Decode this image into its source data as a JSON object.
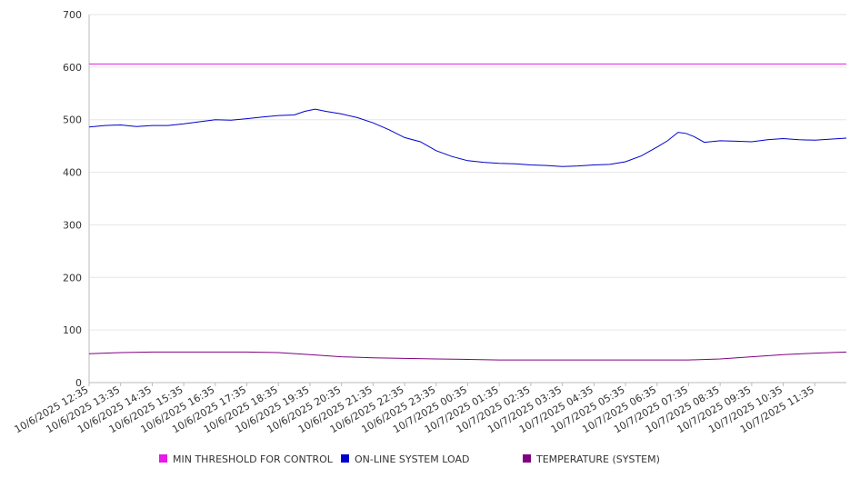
{
  "chart_data": {
    "type": "line",
    "ylim": [
      0,
      700
    ],
    "y_ticks": [
      0,
      100,
      200,
      300,
      400,
      500,
      600,
      700
    ],
    "grid": true,
    "legend_position": "bottom",
    "x_tick_labels": [
      "10/6/2025 12:35",
      "10/6/2025 13:35",
      "10/6/2025 14:35",
      "10/6/2025 15:35",
      "10/6/2025 16:35",
      "10/6/2025 17:35",
      "10/6/2025 18:35",
      "10/6/2025 19:35",
      "10/6/2025 20:35",
      "10/6/2025 21:35",
      "10/6/2025 22:35",
      "10/6/2025 23:35",
      "10/7/2025 00:35",
      "10/7/2025 01:35",
      "10/7/2025 02:35",
      "10/7/2025 03:35",
      "10/7/2025 04:35",
      "10/7/2025 05:35",
      "10/7/2025 06:35",
      "10/7/2025 07:35",
      "10/7/2025 08:35",
      "10/7/2025 09:35",
      "10/7/2025 10:35",
      "10/7/2025 11:35"
    ],
    "x_range": [
      "10/6/2025 12:35",
      "10/7/2025 12:35"
    ],
    "series": [
      {
        "name": "MIN THRESHOLD FOR CONTROL",
        "color": "#e619e6",
        "points": [
          [
            "10/6/2025 12:35",
            606
          ],
          [
            "10/7/2025 12:35",
            606
          ]
        ]
      },
      {
        "name": "ON-LINE SYSTEM LOAD",
        "color": "#0000cc",
        "points": [
          [
            "10/6/2025 12:35",
            486
          ],
          [
            "10/6/2025 13:05",
            489
          ],
          [
            "10/6/2025 13:35",
            490
          ],
          [
            "10/6/2025 14:05",
            487
          ],
          [
            "10/6/2025 14:35",
            489
          ],
          [
            "10/6/2025 15:05",
            489
          ],
          [
            "10/6/2025 15:35",
            492
          ],
          [
            "10/6/2025 16:05",
            496
          ],
          [
            "10/6/2025 16:35",
            500
          ],
          [
            "10/6/2025 17:05",
            499
          ],
          [
            "10/6/2025 17:35",
            502
          ],
          [
            "10/6/2025 18:05",
            505
          ],
          [
            "10/6/2025 18:35",
            508
          ],
          [
            "10/6/2025 19:05",
            509
          ],
          [
            "10/6/2025 19:25",
            516
          ],
          [
            "10/6/2025 19:45",
            520
          ],
          [
            "10/6/2025 20:05",
            516
          ],
          [
            "10/6/2025 20:35",
            511
          ],
          [
            "10/6/2025 21:05",
            504
          ],
          [
            "10/6/2025 21:35",
            494
          ],
          [
            "10/6/2025 22:05",
            481
          ],
          [
            "10/6/2025 22:35",
            466
          ],
          [
            "10/6/2025 23:05",
            458
          ],
          [
            "10/6/2025 23:35",
            441
          ],
          [
            "10/7/2025 00:05",
            430
          ],
          [
            "10/7/2025 00:35",
            422
          ],
          [
            "10/7/2025 01:05",
            419
          ],
          [
            "10/7/2025 01:35",
            417
          ],
          [
            "10/7/2025 02:05",
            416
          ],
          [
            "10/7/2025 02:35",
            414
          ],
          [
            "10/7/2025 03:05",
            413
          ],
          [
            "10/7/2025 03:35",
            411
          ],
          [
            "10/7/2025 04:05",
            412
          ],
          [
            "10/7/2025 04:35",
            414
          ],
          [
            "10/7/2025 05:05",
            415
          ],
          [
            "10/7/2025 05:35",
            420
          ],
          [
            "10/7/2025 06:05",
            431
          ],
          [
            "10/7/2025 06:35",
            448
          ],
          [
            "10/7/2025 06:55",
            460
          ],
          [
            "10/7/2025 07:15",
            476
          ],
          [
            "10/7/2025 07:30",
            474
          ],
          [
            "10/7/2025 07:45",
            468
          ],
          [
            "10/7/2025 08:05",
            457
          ],
          [
            "10/7/2025 08:35",
            460
          ],
          [
            "10/7/2025 09:05",
            459
          ],
          [
            "10/7/2025 09:35",
            458
          ],
          [
            "10/7/2025 10:05",
            462
          ],
          [
            "10/7/2025 10:35",
            464
          ],
          [
            "10/7/2025 11:05",
            462
          ],
          [
            "10/7/2025 11:35",
            461
          ],
          [
            "10/7/2025 12:35",
            465
          ]
        ]
      },
      {
        "name": "TEMPERATURE (SYSTEM)",
        "color": "#800080",
        "points": [
          [
            "10/6/2025 12:35",
            55
          ],
          [
            "10/6/2025 13:35",
            57
          ],
          [
            "10/6/2025 14:35",
            58
          ],
          [
            "10/6/2025 15:35",
            58
          ],
          [
            "10/6/2025 16:35",
            58
          ],
          [
            "10/6/2025 17:35",
            58
          ],
          [
            "10/6/2025 18:35",
            57
          ],
          [
            "10/6/2025 19:35",
            53
          ],
          [
            "10/6/2025 20:35",
            49
          ],
          [
            "10/6/2025 21:35",
            47
          ],
          [
            "10/6/2025 22:35",
            46
          ],
          [
            "10/6/2025 23:35",
            45
          ],
          [
            "10/7/2025 00:35",
            44
          ],
          [
            "10/7/2025 01:35",
            43
          ],
          [
            "10/7/2025 02:35",
            43
          ],
          [
            "10/7/2025 03:35",
            43
          ],
          [
            "10/7/2025 04:35",
            43
          ],
          [
            "10/7/2025 05:35",
            43
          ],
          [
            "10/7/2025 06:35",
            43
          ],
          [
            "10/7/2025 07:35",
            43
          ],
          [
            "10/7/2025 08:35",
            45
          ],
          [
            "10/7/2025 09:35",
            49
          ],
          [
            "10/7/2025 10:35",
            53
          ],
          [
            "10/7/2025 11:35",
            56
          ],
          [
            "10/7/2025 12:35",
            58
          ]
        ]
      }
    ]
  }
}
